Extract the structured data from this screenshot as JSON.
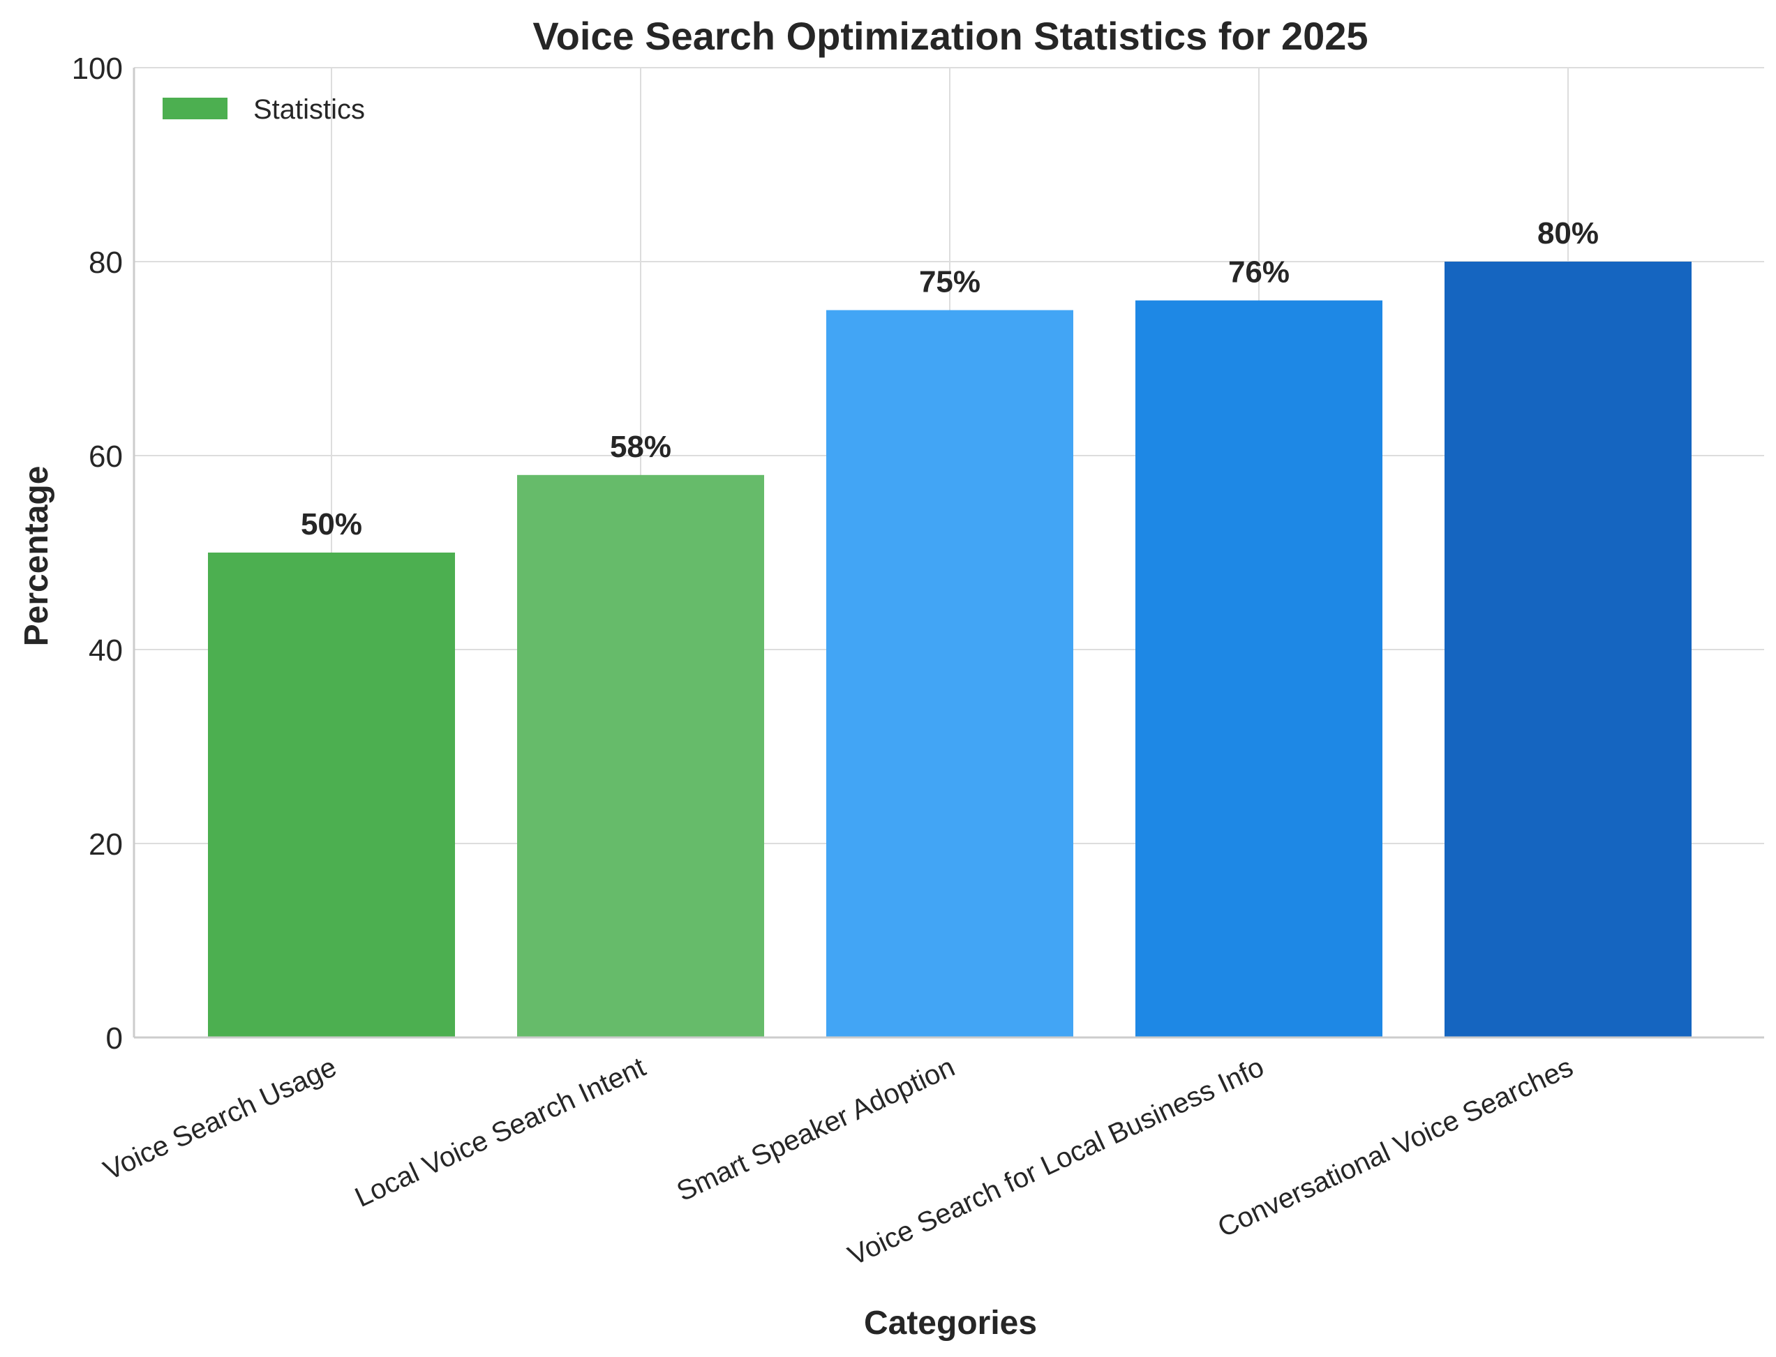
{
  "chart_data": {
    "type": "bar",
    "title": "Voice Search Optimization Statistics for 2025",
    "xlabel": "Categories",
    "ylabel": "Percentage",
    "ylim": [
      0,
      100
    ],
    "yticks": [
      0,
      20,
      40,
      60,
      80,
      100
    ],
    "grid": true,
    "legend": {
      "placement": "top-left",
      "label": "Statistics",
      "color": "#4caf50"
    },
    "categories": [
      "Voice Search Usage",
      "Local Voice Search Intent",
      "Smart Speaker Adoption",
      "Voice Search for Local Business Info",
      "Conversational Voice Searches"
    ],
    "series": [
      {
        "name": "Statistics",
        "values": [
          50,
          58,
          75,
          76,
          80
        ],
        "labels": [
          "50%",
          "58%",
          "75%",
          "76%",
          "80%"
        ],
        "colors": [
          "#4caf50",
          "#66bb6a",
          "#42a5f5",
          "#1e88e5",
          "#1565c0"
        ]
      }
    ]
  }
}
